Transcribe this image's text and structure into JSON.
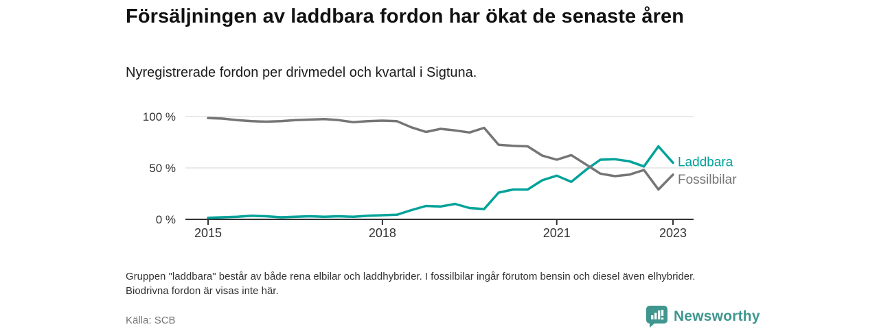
{
  "header": {
    "title": "Försäljningen av laddbara fordon har ökat de senaste åren",
    "subtitle": "Nyregistrerade fordon per drivmedel och kvartal i Sigtuna."
  },
  "chart_data": {
    "type": "line",
    "unit": "%",
    "x_quarters": [
      "2015 Q1",
      "2015 Q2",
      "2015 Q3",
      "2015 Q4",
      "2016 Q1",
      "2016 Q2",
      "2016 Q3",
      "2016 Q4",
      "2017 Q1",
      "2017 Q2",
      "2017 Q3",
      "2017 Q4",
      "2018 Q1",
      "2018 Q2",
      "2018 Q3",
      "2018 Q4",
      "2019 Q1",
      "2019 Q2",
      "2019 Q3",
      "2019 Q4",
      "2020 Q1",
      "2020 Q2",
      "2020 Q3",
      "2020 Q4",
      "2021 Q1",
      "2021 Q2",
      "2021 Q3",
      "2021 Q4",
      "2022 Q1",
      "2022 Q2",
      "2022 Q3",
      "2022 Q4",
      "2023 Q1"
    ],
    "series": [
      {
        "name": "Laddbara",
        "color": "#00a29a",
        "values": [
          1.5,
          2,
          2.5,
          3.5,
          3,
          2,
          2.5,
          3,
          2.5,
          3,
          2.5,
          3.5,
          4,
          4.5,
          9,
          13,
          12.5,
          15,
          11,
          10,
          26,
          29,
          29,
          38,
          42.5,
          36.5,
          48,
          58,
          58.5,
          56.5,
          51.5,
          71,
          55
        ]
      },
      {
        "name": "Fossilbilar",
        "color": "#757575",
        "values": [
          98.5,
          98,
          96.5,
          95.5,
          95,
          95.5,
          96.5,
          97,
          97.5,
          96.5,
          94.5,
          95.5,
          96,
          95.5,
          89.5,
          85,
          88,
          86.5,
          84.5,
          89,
          72.5,
          71.5,
          71,
          62,
          58,
          62.5,
          53.5,
          44.5,
          42,
          43.5,
          48,
          29,
          43.5
        ]
      }
    ],
    "ylim": [
      0,
      100
    ],
    "y_ticks": [
      {
        "value": 100,
        "label": "100 %"
      },
      {
        "value": 50,
        "label": "50 %"
      },
      {
        "value": 0,
        "label": "0 %"
      }
    ],
    "x_ticks": [
      {
        "index": 0,
        "label": "2015"
      },
      {
        "index": 12,
        "label": "2018"
      },
      {
        "index": 24,
        "label": "2021"
      },
      {
        "index": 32,
        "label": "2023"
      }
    ],
    "grid": "horizontal",
    "legend_position": "line-end-right"
  },
  "footnote": "Gruppen \"laddbara\" består av både rena elbilar och laddhybrider. I fossilbilar ingår förutom bensin och diesel även elhybrider. Biodrivna fordon är visas inte här.",
  "footer": {
    "source": "Källa: SCB",
    "brand": "Newsworthy"
  },
  "colors": {
    "laddbara": "#00a29a",
    "fossilbilar": "#757575",
    "gridline": "#dcdcdc",
    "axis": "#333333",
    "axis_text": "#333333",
    "brand_teal": "#3f968e"
  }
}
